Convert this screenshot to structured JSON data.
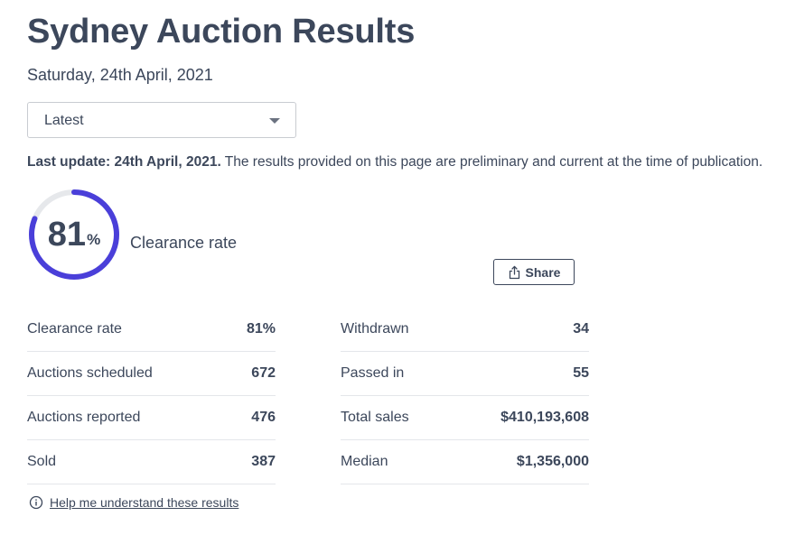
{
  "header": {
    "title": "Sydney Auction Results",
    "date": "Saturday, 24th April, 2021"
  },
  "filter": {
    "selected": "Latest"
  },
  "update": {
    "label": "Last update: 24th April, 2021.",
    "note": " The results provided on this page are preliminary and current at the time of publication."
  },
  "clearance": {
    "value": "81",
    "unit": "%",
    "fraction": 0.81,
    "label": "Clearance rate",
    "ring_color": "#4a3fd9",
    "track_color": "#e6e8eb"
  },
  "share": {
    "label": "Share",
    "icon": "share-icon"
  },
  "stats_left": [
    {
      "key": "Clearance rate",
      "value": "81%"
    },
    {
      "key": "Auctions scheduled",
      "value": "672"
    },
    {
      "key": "Auctions reported",
      "value": "476"
    },
    {
      "key": "Sold",
      "value": "387"
    }
  ],
  "stats_right": [
    {
      "key": "Withdrawn",
      "value": "34"
    },
    {
      "key": "Passed in",
      "value": "55"
    },
    {
      "key": "Total sales",
      "value": "$410,193,608"
    },
    {
      "key": "Median",
      "value": "$1,356,000"
    }
  ],
  "help": {
    "icon": "info-icon",
    "link": "Help me understand these results"
  }
}
